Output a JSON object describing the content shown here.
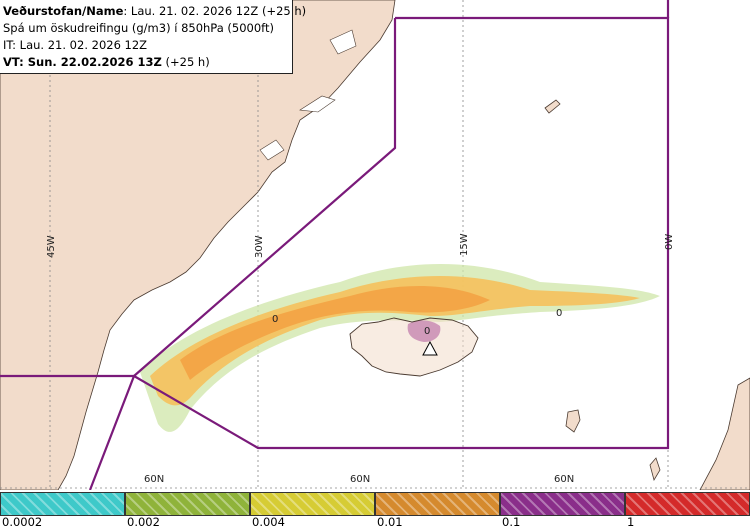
{
  "header": {
    "line1_bold": "Veðurstofan/Name",
    "line1_rest": ": Lau. 21. 02. 2026 12Z (+25 h)",
    "line2": "Spá um öskudreifingu (g/m3) í 850hPa (5000ft)",
    "line3": "IT: Lau. 21. 02. 2026 12Z",
    "line4_bold": "VT: Sun. 22.02.2026 13Z",
    "line4_rest": " (+25 h)"
  },
  "grid_labels": {
    "meridians": [
      "45W",
      "30W",
      "15W",
      "0W"
    ],
    "parallels": [
      "60N",
      "60N",
      "60N"
    ]
  },
  "contour_labels": [
    "0",
    "0",
    "0"
  ],
  "legend": {
    "ticks": [
      "0.0002",
      "0.002",
      "0.004",
      "0.01",
      "0.1",
      "1"
    ],
    "colors": [
      "#3ec9c9",
      "#8fb33a",
      "#d6cc34",
      "#d58a2e",
      "#8a2e8a",
      "#d42a2a"
    ]
  },
  "colors": {
    "land": "#f2dccb",
    "sea": "#ffffff",
    "boundary": "#7a1a7a",
    "ash_low": "#cfe6a8",
    "ash_mid": "#f5c15c",
    "ash_high": "#f2a446",
    "ash_peak": "#a64aa6"
  }
}
